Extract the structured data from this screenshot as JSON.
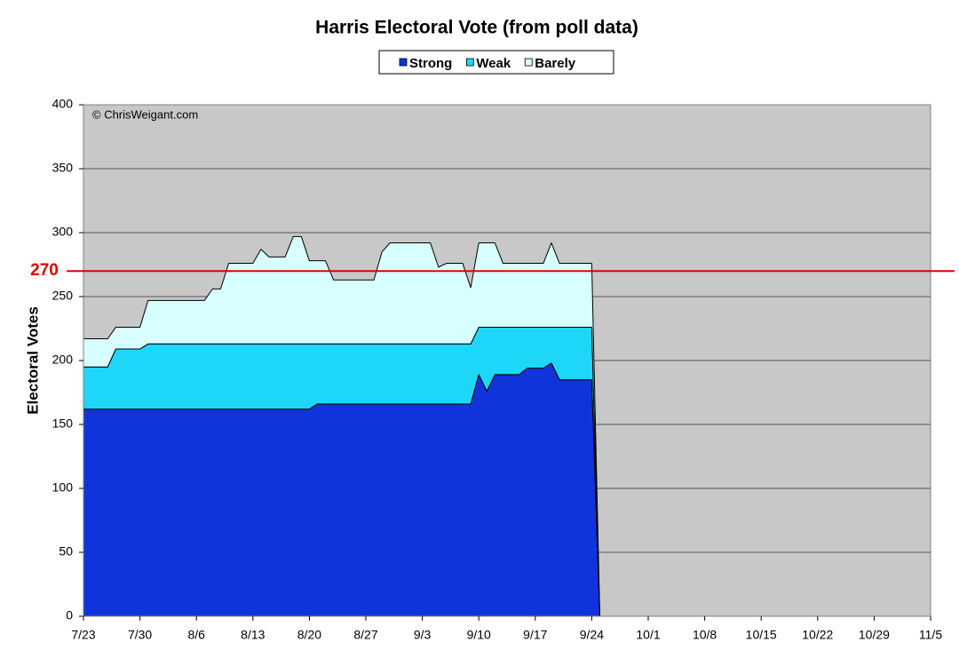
{
  "chart_data": {
    "type": "stacked_area",
    "title": "Harris Electoral Vote (from poll data)",
    "y_label": "Electoral Votes",
    "annotation": "© ChrisWeigant.com",
    "threshold": 270,
    "threshold_color": "#e00000",
    "x": [
      "7/23",
      "7/24",
      "7/25",
      "7/26",
      "7/27",
      "7/28",
      "7/29",
      "7/30",
      "7/31",
      "8/1",
      "8/2",
      "8/3",
      "8/4",
      "8/5",
      "8/6",
      "8/7",
      "8/8",
      "8/9",
      "8/10",
      "8/11",
      "8/12",
      "8/13",
      "8/14",
      "8/15",
      "8/16",
      "8/17",
      "8/18",
      "8/19",
      "8/20",
      "8/21",
      "8/22",
      "8/23",
      "8/24",
      "8/25",
      "8/26",
      "8/27",
      "8/28",
      "8/29",
      "8/30",
      "8/31",
      "9/1",
      "9/2",
      "9/3",
      "9/4",
      "9/5",
      "9/6",
      "9/7",
      "9/8",
      "9/9",
      "9/10",
      "9/11",
      "9/12",
      "9/13",
      "9/14",
      "9/15",
      "9/16",
      "9/17",
      "9/18",
      "9/19",
      "9/20",
      "9/21",
      "9/22",
      "9/23",
      "9/24",
      "9/25"
    ],
    "series": [
      {
        "name": "Strong",
        "color": "#1034dc",
        "values": [
          162,
          162,
          162,
          162,
          162,
          162,
          162,
          162,
          162,
          162,
          162,
          162,
          162,
          162,
          162,
          162,
          162,
          162,
          162,
          162,
          162,
          162,
          162,
          162,
          162,
          162,
          162,
          162,
          162,
          166,
          166,
          166,
          166,
          166,
          166,
          166,
          166,
          166,
          166,
          166,
          166,
          166,
          166,
          166,
          166,
          166,
          166,
          166,
          166,
          189,
          176,
          189,
          189,
          189,
          189,
          194,
          194,
          194,
          198,
          185,
          185,
          185,
          185,
          185,
          0
        ]
      },
      {
        "name": "Weak",
        "color": "#1ed6f8",
        "values": [
          33,
          33,
          33,
          33,
          47,
          47,
          47,
          47,
          51,
          51,
          51,
          51,
          51,
          51,
          51,
          51,
          51,
          51,
          51,
          51,
          51,
          51,
          51,
          51,
          51,
          51,
          51,
          51,
          51,
          47,
          47,
          47,
          47,
          47,
          47,
          47,
          47,
          47,
          47,
          47,
          47,
          47,
          47,
          47,
          47,
          47,
          47,
          47,
          47,
          37,
          50,
          37,
          37,
          37,
          37,
          32,
          32,
          32,
          28,
          41,
          41,
          41,
          41,
          41,
          0
        ]
      },
      {
        "name": "Barely",
        "color": "#d8ffff",
        "values": [
          22,
          22,
          22,
          22,
          17,
          17,
          17,
          17,
          34,
          34,
          34,
          34,
          34,
          34,
          34,
          34,
          43,
          43,
          63,
          63,
          63,
          63,
          74,
          68,
          68,
          68,
          84,
          84,
          65,
          65,
          65,
          50,
          50,
          50,
          50,
          50,
          50,
          72,
          79,
          79,
          79,
          79,
          79,
          79,
          60,
          63,
          63,
          63,
          44,
          66,
          66,
          66,
          50,
          50,
          50,
          50,
          50,
          50,
          66,
          50,
          50,
          50,
          50,
          50,
          0
        ]
      }
    ],
    "xticks": [
      "7/23",
      "7/30",
      "8/6",
      "8/13",
      "8/20",
      "8/27",
      "9/3",
      "9/10",
      "9/17",
      "9/24",
      "10/1",
      "10/8",
      "10/15",
      "10/22",
      "10/29",
      "11/5"
    ],
    "ylim": [
      0,
      400
    ],
    "yticks": [
      0,
      50,
      100,
      150,
      200,
      250,
      300,
      350,
      400
    ],
    "grid": true,
    "legend": "top"
  }
}
